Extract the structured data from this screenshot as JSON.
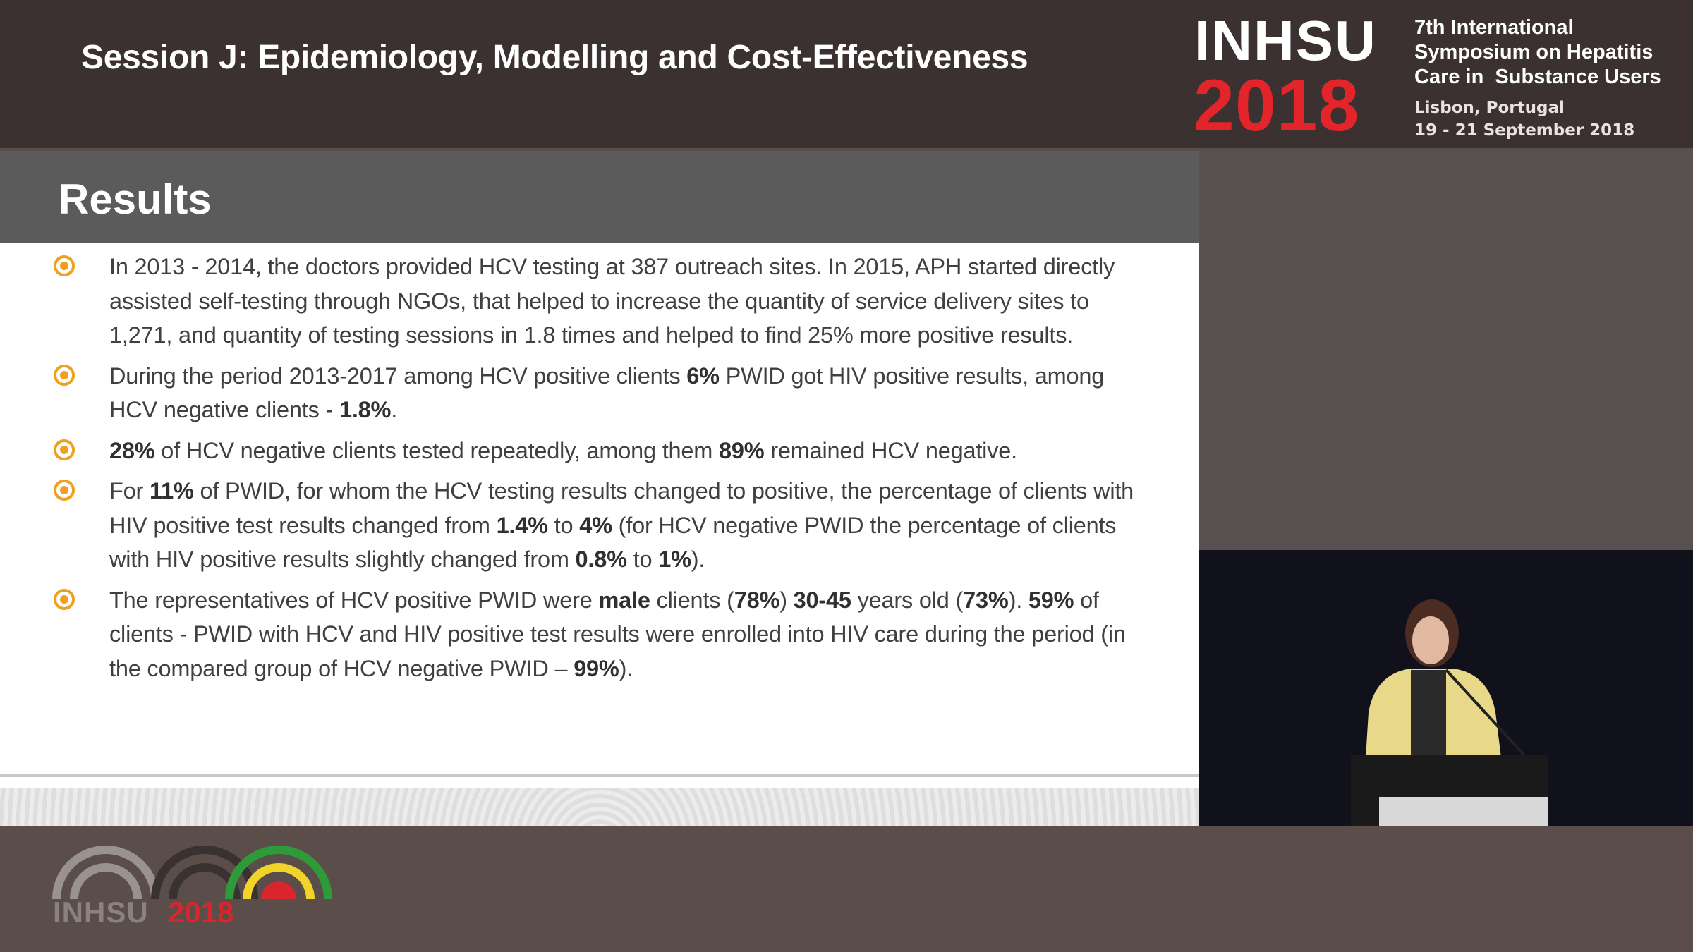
{
  "header": {
    "session": "Session J: Epidemiology, Modelling and Cost-Effectiveness",
    "logo": {
      "name": "INHSU",
      "year": "2018"
    },
    "event": [
      "7th International",
      "Symposium on Hepatitis",
      "Care in  Substance Users"
    ],
    "location": "Lisbon, Portugal",
    "dates": "19 - 21 September 2018"
  },
  "slide": {
    "title": "Results",
    "bullets": [
      {
        "runs": [
          {
            "text": "In 2013 - 2014, the doctors provided HCV testing at 387 outreach sites. In 2015, APH started directly assisted self-testing through NGOs, that helped to increase the quantity of service delivery sites to 1,271, and quantity of testing sessions in 1.8 times and helped to find 25% more positive results."
          }
        ]
      },
      {
        "runs": [
          {
            "text": "During the period 2013-2017 among HCV positive clients "
          },
          {
            "text": "6%",
            "bold": true
          },
          {
            "text": " PWID got HIV positive results, among HCV negative clients - "
          },
          {
            "text": "1.8%",
            "bold": true
          },
          {
            "text": "."
          }
        ]
      },
      {
        "runs": [
          {
            "text": "28%",
            "bold": true
          },
          {
            "text": " of HCV negative clients tested repeatedly, among them "
          },
          {
            "text": "89%",
            "bold": true
          },
          {
            "text": " remained HCV negative."
          }
        ]
      },
      {
        "runs": [
          {
            "text": "For "
          },
          {
            "text": "11%",
            "bold": true
          },
          {
            "text": " of PWID, for whom the HCV testing results changed to positive, the percentage of clients with HIV positive test results changed from "
          },
          {
            "text": "1.4%",
            "bold": true
          },
          {
            "text": " to "
          },
          {
            "text": "4%",
            "bold": true
          },
          {
            "text": " (for HCV negative PWID the percentage of clients with HIV positive results slightly changed from "
          },
          {
            "text": "0.8%",
            "bold": true
          },
          {
            "text": " to "
          },
          {
            "text": "1%",
            "bold": true
          },
          {
            "text": ")."
          }
        ]
      },
      {
        "runs": [
          {
            "text": "The representatives of HCV positive PWID were "
          },
          {
            "text": "male",
            "bold": true
          },
          {
            "text": " clients ("
          },
          {
            "text": "78%",
            "bold": true
          },
          {
            "text": ") "
          },
          {
            "text": "30-45",
            "bold": true
          },
          {
            "text": " years old ("
          },
          {
            "text": "73%",
            "bold": true
          },
          {
            "text": "). "
          },
          {
            "text": "59%",
            "bold": true
          },
          {
            "text": " of clients - PWID with HCV and HIV positive test results were enrolled into HIV care during the period (in the compared group of HCV negative PWID – "
          },
          {
            "text": "99%",
            "bold": true
          },
          {
            "text": ")."
          }
        ]
      }
    ]
  },
  "footer": {
    "logo": {
      "name": "INHSU",
      "year": "2018"
    }
  }
}
